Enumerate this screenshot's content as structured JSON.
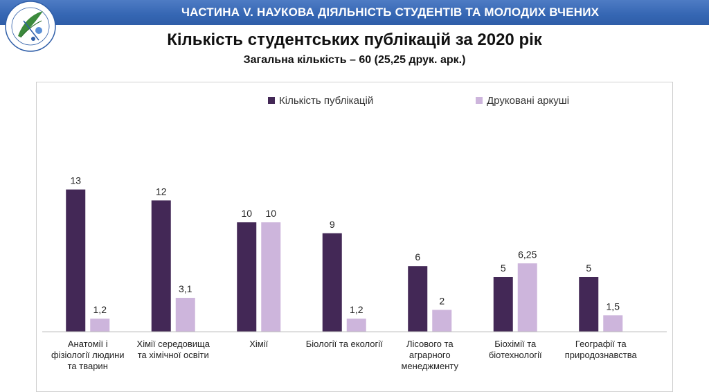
{
  "header": {
    "banner_text": "ЧАСТИНА V. НАУКОВА ДІЯЛЬНІСТЬ СТУДЕНТІВ ТА МОЛОДИХ ВЧЕНИХ",
    "logo_icon": "university-emblem-icon"
  },
  "colors": {
    "banner": "#3566b3",
    "series_publications": "#432856",
    "series_sheets": "#cdb5dc"
  },
  "chart_data": {
    "type": "bar",
    "title": "Кількість студентських публікацій за 2020 рік",
    "subtitle": "Загальна кількість – 60 (25,25 друк. арк.)",
    "categories": [
      [
        "Анатомії і",
        "фізіології людини",
        "та тварин"
      ],
      [
        "Хімії середовища",
        "та хімічної освіти"
      ],
      [
        "Хімії"
      ],
      [
        "Біології та екології"
      ],
      [
        "Лісового та",
        "аграрного",
        "менеджменту"
      ],
      [
        "Біохімії та",
        "біотехнології"
      ],
      [
        "Географії та",
        "природознавства"
      ]
    ],
    "series": [
      {
        "name": "Кількість публікацій",
        "values": [
          13,
          12,
          10,
          9,
          6,
          5,
          5
        ],
        "labels": [
          "13",
          "12",
          "10",
          "9",
          "6",
          "5",
          "5"
        ],
        "color": "#432856"
      },
      {
        "name": "Друковані аркуші",
        "values": [
          1.2,
          3.1,
          10,
          1.2,
          2,
          6.25,
          1.5
        ],
        "labels": [
          "1,2",
          "3,1",
          "10",
          "1,2",
          "2",
          "6,25",
          "1,5"
        ],
        "color": "#cdb5dc"
      }
    ],
    "ylim": [
      0,
      14
    ],
    "grid": false,
    "legend": "top-center"
  }
}
